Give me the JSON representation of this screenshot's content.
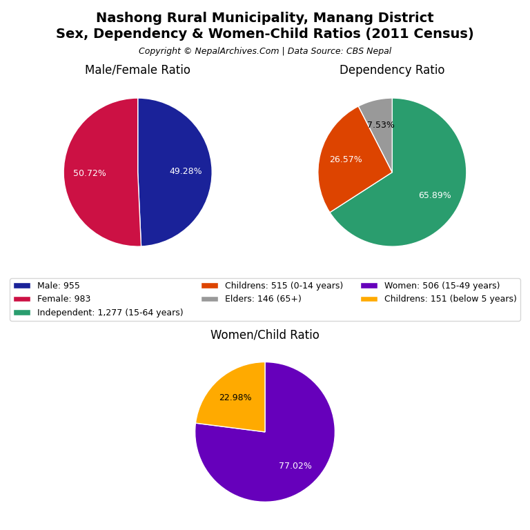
{
  "title": "Nashong Rural Municipality, Manang District",
  "subtitle": "Sex, Dependency & Women-Child Ratios (2011 Census)",
  "annotations": [
    "Copyright © NepalArchives.Com | Data Source: CBS Nepal"
  ],
  "legend": "center",
  "chart_data": [
    {
      "type": "pie",
      "title": "Male/Female Ratio",
      "categories": [
        "Male: 955",
        "Female: 983"
      ],
      "values": [
        49.28,
        50.72
      ],
      "value_labels": [
        "49.28%",
        "50.72%"
      ],
      "colors": [
        "#1a2299",
        "#cc1144"
      ],
      "data_labels": true
    },
    {
      "type": "pie",
      "title": "Dependency Ratio",
      "categories": [
        "Independent: 1,277 (15-64 years)",
        "Childrens: 515 (0-14 years)",
        "Elders: 146 (65+)"
      ],
      "values": [
        65.89,
        26.57,
        7.53
      ],
      "value_labels": [
        "65.89%",
        "26.57%",
        "7.53%"
      ],
      "colors": [
        "#2a9d6e",
        "#dd4400",
        "#999999"
      ],
      "data_labels": true
    },
    {
      "type": "pie",
      "title": "Women/Child Ratio",
      "categories": [
        "Women: 506 (15-49 years)",
        "Childrens: 151 (below 5 years)"
      ],
      "values": [
        77.02,
        22.98
      ],
      "value_labels": [
        "77.02%",
        "22.98%"
      ],
      "colors": [
        "#6600bb",
        "#ffaa00"
      ],
      "data_labels": true
    }
  ]
}
